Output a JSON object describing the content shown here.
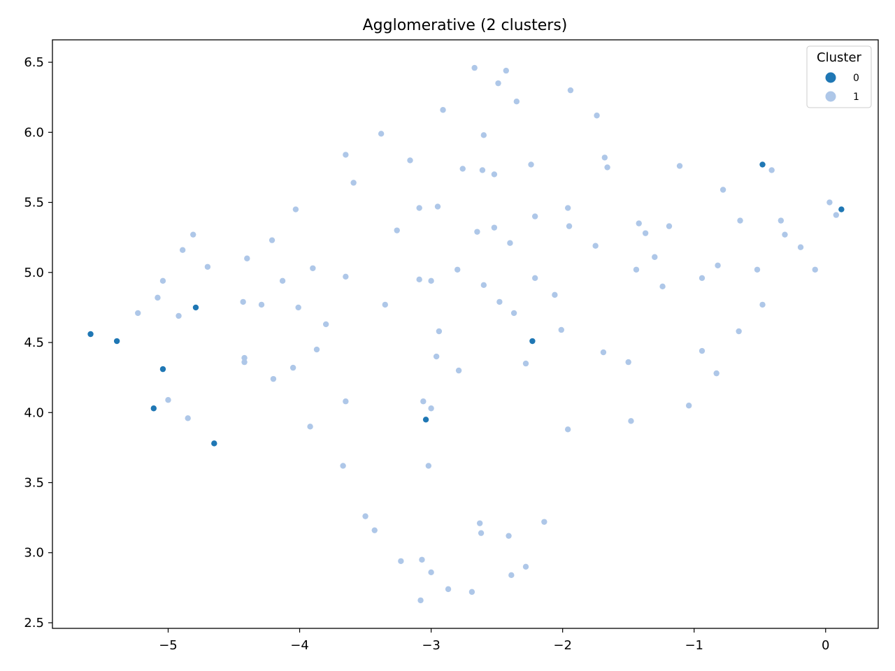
{
  "chart_data": {
    "type": "scatter",
    "title": "Agglomerative (2 clusters)",
    "xlabel": "",
    "ylabel": "",
    "xlim": [
      -5.88,
      0.4
    ],
    "ylim": [
      2.46,
      6.66
    ],
    "xticks": [
      -5,
      -4,
      -3,
      -2,
      -1,
      0
    ],
    "xtick_labels": [
      "−5",
      "−4",
      "−3",
      "−2",
      "−1",
      "0"
    ],
    "yticks": [
      2.5,
      3.0,
      3.5,
      4.0,
      4.5,
      5.0,
      5.5,
      6.0,
      6.5
    ],
    "ytick_labels": [
      "2.5",
      "3.0",
      "3.5",
      "4.0",
      "4.5",
      "5.0",
      "5.5",
      "6.0",
      "6.5"
    ],
    "grid": false,
    "legend": {
      "title": "Cluster",
      "position": "top-right"
    },
    "series": [
      {
        "name": "0",
        "color": "#1f77b4",
        "points": [
          [
            -5.59,
            4.56
          ],
          [
            -5.39,
            4.51
          ],
          [
            -4.79,
            4.75
          ],
          [
            -5.04,
            4.31
          ],
          [
            -5.11,
            4.03
          ],
          [
            -4.65,
            3.78
          ],
          [
            -3.04,
            3.95
          ],
          [
            -2.23,
            4.51
          ],
          [
            -0.48,
            5.77
          ],
          [
            0.12,
            5.45
          ]
        ]
      },
      {
        "name": "1",
        "color": "#aec7e8",
        "points": [
          [
            -2.67,
            6.46
          ],
          [
            -2.43,
            6.44
          ],
          [
            -2.49,
            6.35
          ],
          [
            -1.94,
            6.3
          ],
          [
            -2.35,
            6.22
          ],
          [
            -2.91,
            6.16
          ],
          [
            -1.74,
            6.12
          ],
          [
            -3.38,
            5.99
          ],
          [
            -2.6,
            5.98
          ],
          [
            -3.65,
            5.84
          ],
          [
            -3.16,
            5.8
          ],
          [
            -1.68,
            5.82
          ],
          [
            -1.66,
            5.75
          ],
          [
            -2.24,
            5.77
          ],
          [
            -2.76,
            5.74
          ],
          [
            -2.61,
            5.73
          ],
          [
            -2.52,
            5.7
          ],
          [
            -1.11,
            5.76
          ],
          [
            -0.41,
            5.73
          ],
          [
            -3.59,
            5.64
          ],
          [
            -0.78,
            5.59
          ],
          [
            0.03,
            5.5
          ],
          [
            -3.09,
            5.46
          ],
          [
            -2.95,
            5.47
          ],
          [
            -1.96,
            5.46
          ],
          [
            -4.03,
            5.45
          ],
          [
            -2.21,
            5.4
          ],
          [
            0.08,
            5.41
          ],
          [
            -0.34,
            5.37
          ],
          [
            -1.42,
            5.35
          ],
          [
            -0.65,
            5.37
          ],
          [
            -1.95,
            5.33
          ],
          [
            -1.19,
            5.33
          ],
          [
            -2.52,
            5.32
          ],
          [
            -3.26,
            5.3
          ],
          [
            -2.65,
            5.29
          ],
          [
            -1.37,
            5.28
          ],
          [
            -0.31,
            5.27
          ],
          [
            -4.81,
            5.27
          ],
          [
            -4.21,
            5.23
          ],
          [
            -2.4,
            5.21
          ],
          [
            -1.75,
            5.19
          ],
          [
            -0.19,
            5.18
          ],
          [
            -4.89,
            5.16
          ],
          [
            -1.3,
            5.11
          ],
          [
            -4.4,
            5.1
          ],
          [
            -4.7,
            5.04
          ],
          [
            -0.08,
            5.02
          ],
          [
            -3.9,
            5.03
          ],
          [
            -2.8,
            5.02
          ],
          [
            -1.44,
            5.02
          ],
          [
            -0.82,
            5.05
          ],
          [
            -0.52,
            5.02
          ],
          [
            -3.65,
            4.97
          ],
          [
            -5.04,
            4.94
          ],
          [
            -4.13,
            4.94
          ],
          [
            -3.09,
            4.95
          ],
          [
            -3.0,
            4.94
          ],
          [
            -2.21,
            4.96
          ],
          [
            -0.94,
            4.96
          ],
          [
            -2.6,
            4.91
          ],
          [
            -1.24,
            4.9
          ],
          [
            -5.08,
            4.82
          ],
          [
            -2.06,
            4.84
          ],
          [
            -4.43,
            4.79
          ],
          [
            -4.29,
            4.77
          ],
          [
            -3.35,
            4.77
          ],
          [
            -4.01,
            4.75
          ],
          [
            -2.48,
            4.79
          ],
          [
            -0.48,
            4.77
          ],
          [
            -5.23,
            4.71
          ],
          [
            -4.92,
            4.69
          ],
          [
            -2.37,
            4.71
          ],
          [
            -3.8,
            4.63
          ],
          [
            -2.01,
            4.59
          ],
          [
            -2.94,
            4.58
          ],
          [
            -0.66,
            4.58
          ],
          [
            -3.87,
            4.45
          ],
          [
            -1.69,
            4.43
          ],
          [
            -0.94,
            4.44
          ],
          [
            -4.42,
            4.39
          ],
          [
            -4.42,
            4.36
          ],
          [
            -2.96,
            4.4
          ],
          [
            -1.5,
            4.36
          ],
          [
            -2.28,
            4.35
          ],
          [
            -4.05,
            4.32
          ],
          [
            -2.79,
            4.3
          ],
          [
            -0.83,
            4.28
          ],
          [
            -4.2,
            4.24
          ],
          [
            -5.0,
            4.09
          ],
          [
            -3.65,
            4.08
          ],
          [
            -3.06,
            4.08
          ],
          [
            -1.04,
            4.05
          ],
          [
            -3.0,
            4.03
          ],
          [
            -4.85,
            3.96
          ],
          [
            -1.48,
            3.94
          ],
          [
            -3.92,
            3.9
          ],
          [
            -1.96,
            3.88
          ],
          [
            -3.67,
            3.62
          ],
          [
            -3.02,
            3.62
          ],
          [
            -3.5,
            3.26
          ],
          [
            -2.63,
            3.21
          ],
          [
            -2.14,
            3.22
          ],
          [
            -3.43,
            3.16
          ],
          [
            -2.62,
            3.14
          ],
          [
            -2.41,
            3.12
          ],
          [
            -3.23,
            2.94
          ],
          [
            -3.07,
            2.95
          ],
          [
            -2.28,
            2.9
          ],
          [
            -3.0,
            2.86
          ],
          [
            -2.39,
            2.84
          ],
          [
            -2.87,
            2.74
          ],
          [
            -2.69,
            2.72
          ],
          [
            -3.08,
            2.66
          ]
        ]
      }
    ]
  }
}
